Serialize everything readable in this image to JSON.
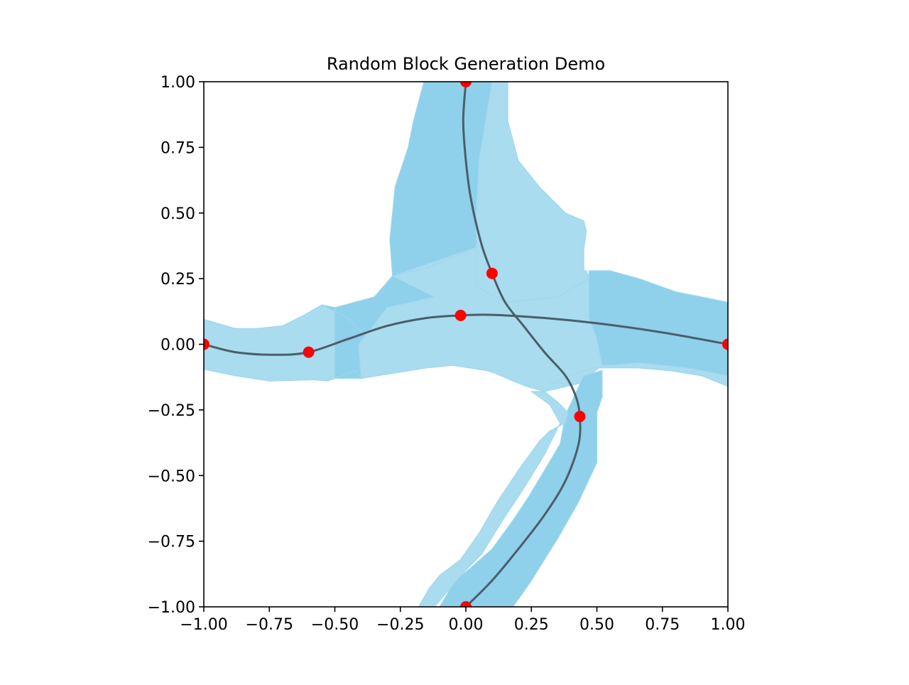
{
  "colors": {
    "band_light": "#a9dcef",
    "band_dark": "#8fd0eb",
    "band_edge": "#9fd7ee",
    "curve": "#4a5e6a",
    "points": "#ff0000",
    "axis": "#000000"
  },
  "chart_data": {
    "type": "scatter",
    "title": "Random Block Generation Demo",
    "xlabel": "",
    "ylabel": "",
    "xlim": [
      -1.0,
      1.0
    ],
    "ylim": [
      -1.0,
      1.0
    ],
    "grid": false,
    "x_ticks": [
      -1.0,
      -0.75,
      -0.5,
      -0.25,
      0.0,
      0.25,
      0.5,
      0.75,
      1.0
    ],
    "y_ticks": [
      -1.0,
      -0.75,
      -0.5,
      -0.25,
      0.0,
      0.25,
      0.5,
      0.75,
      1.0
    ],
    "x_tick_labels": [
      "−1.00",
      "−0.75",
      "−0.50",
      "−0.25",
      "0.00",
      "0.25",
      "0.50",
      "0.75",
      "1.00"
    ],
    "y_tick_labels": [
      "−1.00",
      "−0.75",
      "−0.50",
      "−0.25",
      "0.00",
      "0.25",
      "0.50",
      "0.75",
      "1.00"
    ],
    "points": [
      {
        "x": -1.0,
        "y": 0.0
      },
      {
        "x": -0.6,
        "y": -0.03
      },
      {
        "x": -0.02,
        "y": 0.11
      },
      {
        "x": 1.0,
        "y": 0.0
      },
      {
        "x": 0.0,
        "y": 1.0
      },
      {
        "x": 0.1,
        "y": 0.27
      },
      {
        "x": 0.435,
        "y": -0.275
      },
      {
        "x": 0.0,
        "y": -1.0
      }
    ],
    "curves": [
      {
        "points": [
          [
            -1.0,
            0.0
          ],
          [
            -0.88,
            -0.03
          ],
          [
            -0.73,
            -0.04
          ],
          [
            -0.6,
            -0.03
          ],
          [
            -0.45,
            0.02
          ],
          [
            -0.3,
            0.07
          ],
          [
            -0.15,
            0.1
          ],
          [
            -0.02,
            0.11
          ],
          [
            0.1,
            0.112
          ],
          [
            0.3,
            0.1
          ],
          [
            0.5,
            0.08
          ],
          [
            0.75,
            0.045
          ],
          [
            1.0,
            0.0
          ]
        ]
      },
      {
        "points": [
          [
            0.0,
            1.0
          ],
          [
            -0.01,
            0.85
          ],
          [
            0.0,
            0.7
          ],
          [
            0.02,
            0.55
          ],
          [
            0.06,
            0.38
          ],
          [
            0.1,
            0.27
          ],
          [
            0.15,
            0.16
          ],
          [
            0.22,
            0.07
          ],
          [
            0.3,
            -0.03
          ],
          [
            0.38,
            -0.12
          ],
          [
            0.42,
            -0.2
          ],
          [
            0.435,
            -0.275
          ],
          [
            0.43,
            -0.38
          ],
          [
            0.38,
            -0.52
          ],
          [
            0.3,
            -0.65
          ],
          [
            0.2,
            -0.78
          ],
          [
            0.1,
            -0.9
          ],
          [
            0.0,
            -1.0
          ]
        ]
      }
    ],
    "blocks": [
      {
        "shade": "dark",
        "polygon": [
          [
            -0.28,
            0.26
          ],
          [
            -0.29,
            0.4
          ],
          [
            -0.27,
            0.6
          ],
          [
            -0.22,
            0.75
          ],
          [
            -0.2,
            0.85
          ],
          [
            -0.16,
            1.0
          ],
          [
            0.1,
            1.0
          ],
          [
            0.05,
            0.7
          ],
          [
            0.04,
            0.5
          ],
          [
            0.04,
            0.37
          ],
          [
            -0.15,
            0.29
          ]
        ]
      },
      {
        "shade": "light",
        "polygon": [
          [
            0.04,
            0.37
          ],
          [
            0.04,
            0.5
          ],
          [
            0.05,
            0.7
          ],
          [
            0.1,
            1.0
          ],
          [
            0.16,
            1.0
          ],
          [
            0.16,
            0.85
          ],
          [
            0.2,
            0.7
          ],
          [
            0.28,
            0.6
          ],
          [
            0.38,
            0.5
          ],
          [
            0.45,
            0.47
          ],
          [
            0.46,
            0.43
          ],
          [
            0.45,
            0.36
          ],
          [
            0.45,
            0.28
          ],
          [
            0.46,
            0.28
          ],
          [
            0.47,
            0.25
          ],
          [
            0.35,
            0.18
          ],
          [
            0.15,
            0.16
          ],
          [
            0.04,
            0.22
          ],
          [
            -0.15,
            0.25
          ],
          [
            -0.28,
            0.26
          ]
        ]
      },
      {
        "shade": "dark",
        "polygon": [
          [
            -0.5,
            0.14
          ],
          [
            -0.35,
            0.18
          ],
          [
            -0.28,
            0.26
          ],
          [
            -0.15,
            0.29
          ],
          [
            -0.12,
            0.18
          ],
          [
            -0.3,
            0.14
          ],
          [
            -0.41,
            0.0
          ],
          [
            -0.4,
            -0.13
          ],
          [
            -0.5,
            -0.13
          ]
        ]
      },
      {
        "shade": "light",
        "polygon": [
          [
            -1.0,
            0.095
          ],
          [
            -0.88,
            0.06
          ],
          [
            -0.8,
            0.06
          ],
          [
            -0.7,
            0.07
          ],
          [
            -0.62,
            0.11
          ],
          [
            -0.55,
            0.15
          ],
          [
            -0.5,
            0.14
          ],
          [
            -0.5,
            -0.13
          ],
          [
            -0.53,
            -0.14
          ],
          [
            -0.58,
            -0.135
          ],
          [
            -0.75,
            -0.14
          ],
          [
            -0.88,
            -0.12
          ],
          [
            -1.0,
            -0.095
          ]
        ]
      },
      {
        "shade": "dark",
        "polygon": [
          [
            -0.5,
            0.14
          ],
          [
            -0.55,
            0.15
          ],
          [
            -0.45,
            0.1
          ],
          [
            -0.37,
            0.02
          ],
          [
            -0.34,
            -0.12
          ],
          [
            -0.4,
            -0.13
          ],
          [
            -0.42,
            -0.1
          ],
          [
            -0.5,
            -0.13
          ]
        ]
      },
      {
        "shade": "light",
        "polygon": [
          [
            -0.28,
            0.26
          ],
          [
            -0.15,
            0.29
          ],
          [
            0.04,
            0.37
          ],
          [
            0.04,
            0.22
          ],
          [
            0.15,
            0.16
          ],
          [
            0.35,
            0.18
          ],
          [
            0.47,
            0.25
          ],
          [
            0.47,
            0.28
          ],
          [
            0.47,
            0.1
          ],
          [
            0.5,
            0.02
          ],
          [
            0.52,
            -0.08
          ],
          [
            0.43,
            -0.15
          ],
          [
            0.3,
            -0.18
          ],
          [
            0.23,
            -0.16
          ],
          [
            0.18,
            -0.14
          ],
          [
            0.11,
            -0.11
          ],
          [
            0.08,
            -0.1
          ],
          [
            -0.05,
            -0.08
          ],
          [
            -0.15,
            -0.09
          ],
          [
            -0.4,
            -0.13
          ],
          [
            -0.41,
            0.0
          ],
          [
            -0.3,
            0.14
          ],
          [
            -0.12,
            0.18
          ]
        ]
      },
      {
        "shade": "dark",
        "polygon": [
          [
            0.47,
            0.28
          ],
          [
            0.47,
            0.1
          ],
          [
            0.5,
            0.02
          ],
          [
            0.52,
            -0.08
          ],
          [
            0.66,
            -0.09
          ],
          [
            0.78,
            -0.1
          ],
          [
            0.9,
            -0.12
          ],
          [
            1.0,
            -0.16
          ],
          [
            1.0,
            0.16
          ],
          [
            0.9,
            0.18
          ],
          [
            0.8,
            0.2
          ],
          [
            0.66,
            0.25
          ],
          [
            0.55,
            0.28
          ]
        ]
      },
      {
        "shade": "light",
        "polygon": [
          [
            0.52,
            -0.08
          ],
          [
            0.43,
            -0.15
          ],
          [
            0.32,
            -0.15
          ],
          [
            0.48,
            -0.09
          ],
          [
            0.52,
            -0.09
          ],
          [
            0.66,
            -0.09
          ],
          [
            0.78,
            -0.1
          ],
          [
            0.9,
            -0.12
          ],
          [
            1.0,
            -0.16
          ],
          [
            1.0,
            -0.12
          ],
          [
            0.85,
            -0.09
          ],
          [
            0.66,
            -0.07
          ],
          [
            0.55,
            -0.08
          ]
        ]
      },
      {
        "shade": "dark",
        "polygon": [
          [
            0.38,
            -0.27
          ],
          [
            0.36,
            -0.38
          ],
          [
            0.3,
            -0.48
          ],
          [
            0.24,
            -0.58
          ],
          [
            0.18,
            -0.67
          ],
          [
            0.1,
            -0.78
          ],
          [
            0.02,
            -0.85
          ],
          [
            -0.04,
            -0.9
          ],
          [
            -0.1,
            -1.0
          ],
          [
            0.18,
            -1.0
          ],
          [
            0.25,
            -0.9
          ],
          [
            0.35,
            -0.74
          ],
          [
            0.43,
            -0.6
          ],
          [
            0.5,
            -0.45
          ],
          [
            0.5,
            -0.35
          ],
          [
            0.5,
            -0.26
          ],
          [
            0.52,
            -0.2
          ],
          [
            0.52,
            -0.1
          ],
          [
            0.45,
            -0.12
          ]
        ]
      },
      {
        "shade": "light",
        "polygon": [
          [
            -0.18,
            -1.0
          ],
          [
            -0.14,
            -0.93
          ],
          [
            -0.1,
            -0.88
          ],
          [
            -0.02,
            -0.82
          ],
          [
            0.05,
            -0.72
          ],
          [
            0.12,
            -0.6
          ],
          [
            0.2,
            -0.48
          ],
          [
            0.28,
            -0.37
          ],
          [
            0.32,
            -0.33
          ],
          [
            0.38,
            -0.3
          ],
          [
            0.39,
            -0.26
          ],
          [
            0.35,
            -0.22
          ],
          [
            0.3,
            -0.18
          ],
          [
            0.25,
            -0.18
          ],
          [
            0.32,
            -0.23
          ],
          [
            0.36,
            -0.3
          ],
          [
            0.3,
            -0.42
          ],
          [
            0.22,
            -0.55
          ],
          [
            0.14,
            -0.67
          ],
          [
            0.06,
            -0.8
          ],
          [
            -0.02,
            -0.88
          ],
          [
            -0.06,
            -0.93
          ],
          [
            -0.12,
            -1.0
          ]
        ]
      }
    ]
  }
}
